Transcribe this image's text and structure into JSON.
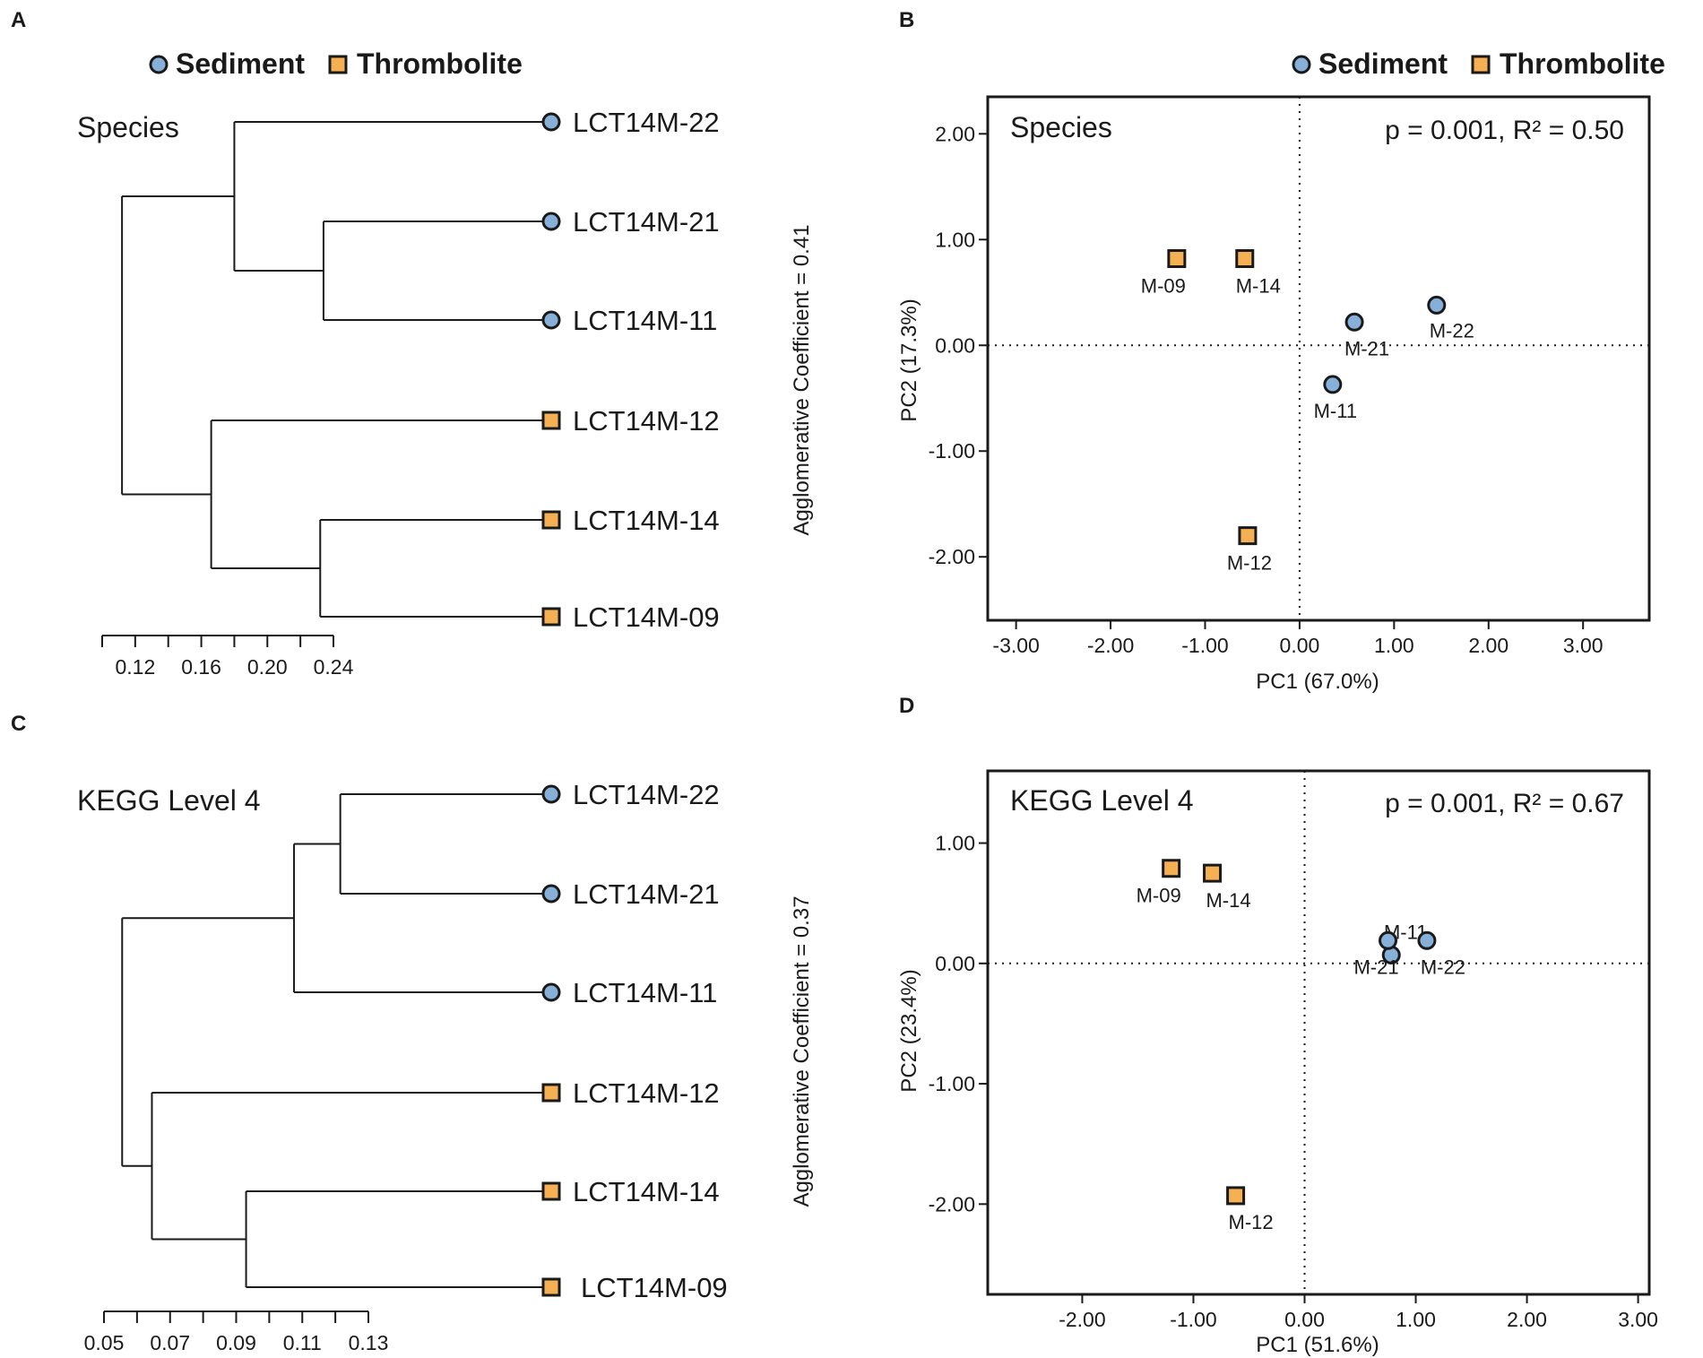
{
  "colors": {
    "sediment": "#86b0d8",
    "thrombolite": "#f4b052",
    "stroke": "#1a1a1a"
  },
  "legend": {
    "sediment": "Sediment",
    "thrombolite": "Thrombolite"
  },
  "chart_data": [
    {
      "panel": "A",
      "type": "dendrogram",
      "title": "Species",
      "side_label": "Agglomerative Coefficient = 0.41",
      "axis": {
        "min": 0.1,
        "max": 0.24,
        "ticks": [
          0.12,
          0.16,
          0.2,
          0.24
        ],
        "tick_labels": [
          "0.12",
          "0.16",
          "0.20",
          "0.24"
        ]
      },
      "leaves": [
        {
          "label": "LCT14M-22",
          "group": "Sediment"
        },
        {
          "label": "LCT14M-21",
          "group": "Sediment"
        },
        {
          "label": "LCT14M-11",
          "group": "Sediment"
        },
        {
          "label": "LCT14M-12",
          "group": "Thrombolite"
        },
        {
          "label": "LCT14M-14",
          "group": "Thrombolite"
        },
        {
          "label": "LCT14M-09",
          "group": "Thrombolite"
        }
      ],
      "merges": [
        {
          "children": [
            1,
            2
          ],
          "height": 0.234
        },
        {
          "children": [
            0,
            "m0"
          ],
          "height": 0.18
        },
        {
          "children": [
            4,
            5
          ],
          "height": 0.232
        },
        {
          "children": [
            3,
            "m2"
          ],
          "height": 0.166
        },
        {
          "children": [
            "m1",
            "m3"
          ],
          "height": 0.112
        }
      ]
    },
    {
      "panel": "B",
      "type": "scatter",
      "title": "Species",
      "stat": "p = 0.001, R² = 0.50",
      "xlabel": "PC1 (67.0%)",
      "ylabel": "PC2 (17.3%)",
      "xlim": [
        -3.3,
        3.7
      ],
      "ylim": [
        2.35,
        -2.6
      ],
      "xticks": [
        -3,
        -2,
        -1,
        0,
        1,
        2,
        3
      ],
      "xtick_labels": [
        "-3.00",
        "-2.00",
        "-1.00",
        "0.00",
        "1.00",
        "2.00",
        "3.00"
      ],
      "yticks": [
        -2,
        -1,
        0,
        1,
        2
      ],
      "ytick_labels": [
        "-2.00",
        "-1.00",
        "0.00",
        "1.00",
        "2.00"
      ],
      "points": [
        {
          "label": "M-12",
          "group": "Thrombolite",
          "x": -0.55,
          "y": -1.8
        },
        {
          "label": "M-11",
          "group": "Sediment",
          "x": 0.35,
          "y": -0.37
        },
        {
          "label": "M-21",
          "group": "Sediment",
          "x": 0.58,
          "y": 0.22
        },
        {
          "label": "M-22",
          "group": "Sediment",
          "x": 1.45,
          "y": 0.38
        },
        {
          "label": "M-09",
          "group": "Thrombolite",
          "x": -1.3,
          "y": 0.82
        },
        {
          "label": "M-14",
          "group": "Thrombolite",
          "x": -0.58,
          "y": 0.82
        }
      ]
    },
    {
      "panel": "C",
      "type": "dendrogram",
      "title": "KEGG Level 4",
      "side_label": "Agglomerative Coefficient = 0.37",
      "axis": {
        "min": 0.05,
        "max": 0.13,
        "ticks": [
          0.05,
          0.07,
          0.09,
          0.11,
          0.13
        ],
        "tick_labels": [
          "0.05",
          "0.07",
          "0.09",
          "0.11",
          "0.13"
        ]
      },
      "leaves": [
        {
          "label": "LCT14M-22",
          "group": "Sediment"
        },
        {
          "label": "LCT14M-21",
          "group": "Sediment"
        },
        {
          "label": "LCT14M-11",
          "group": "Sediment"
        },
        {
          "label": "LCT14M-12",
          "group": "Thrombolite"
        },
        {
          "label": "LCT14M-14",
          "group": "Thrombolite"
        },
        {
          "label": "LCT14M-09",
          "group": "Thrombolite"
        }
      ],
      "merges": [
        {
          "children": [
            0,
            1
          ],
          "height": 0.1215
        },
        {
          "children": [
            "m0",
            2
          ],
          "height": 0.1075
        },
        {
          "children": [
            4,
            5
          ],
          "height": 0.093
        },
        {
          "children": [
            3,
            "m2"
          ],
          "height": 0.0645
        },
        {
          "children": [
            "m1",
            "m3"
          ],
          "height": 0.0555
        }
      ]
    },
    {
      "panel": "D",
      "type": "scatter",
      "title": "KEGG Level 4",
      "stat": "p = 0.001, R² = 0.67",
      "xlabel": "PC1 (51.6%)",
      "ylabel": "PC2 (23.4%)",
      "xlim": [
        -2.85,
        3.1
      ],
      "ylim": [
        1.6,
        -2.75
      ],
      "xticks": [
        -2,
        -1,
        0,
        1,
        2,
        3
      ],
      "xtick_labels": [
        "-2.00",
        "-1.00",
        "0.00",
        "1.00",
        "2.00",
        "3.00"
      ],
      "yticks": [
        -2,
        -1,
        0,
        1
      ],
      "ytick_labels": [
        "-2.00",
        "-1.00",
        "0.00",
        "1.00"
      ],
      "points": [
        {
          "label": "M-12",
          "group": "Thrombolite",
          "x": -0.62,
          "y": -1.93
        },
        {
          "label": "M-11",
          "group": "Sediment",
          "x": 0.78,
          "y": 0.07
        },
        {
          "label": "M-21",
          "group": "Sediment",
          "x": 0.75,
          "y": 0.19
        },
        {
          "label": "M-22",
          "group": "Sediment",
          "x": 1.1,
          "y": 0.19
        },
        {
          "label": "M-09",
          "group": "Thrombolite",
          "x": -1.2,
          "y": 0.79
        },
        {
          "label": "M-14",
          "group": "Thrombolite",
          "x": -0.83,
          "y": 0.75
        }
      ]
    }
  ]
}
